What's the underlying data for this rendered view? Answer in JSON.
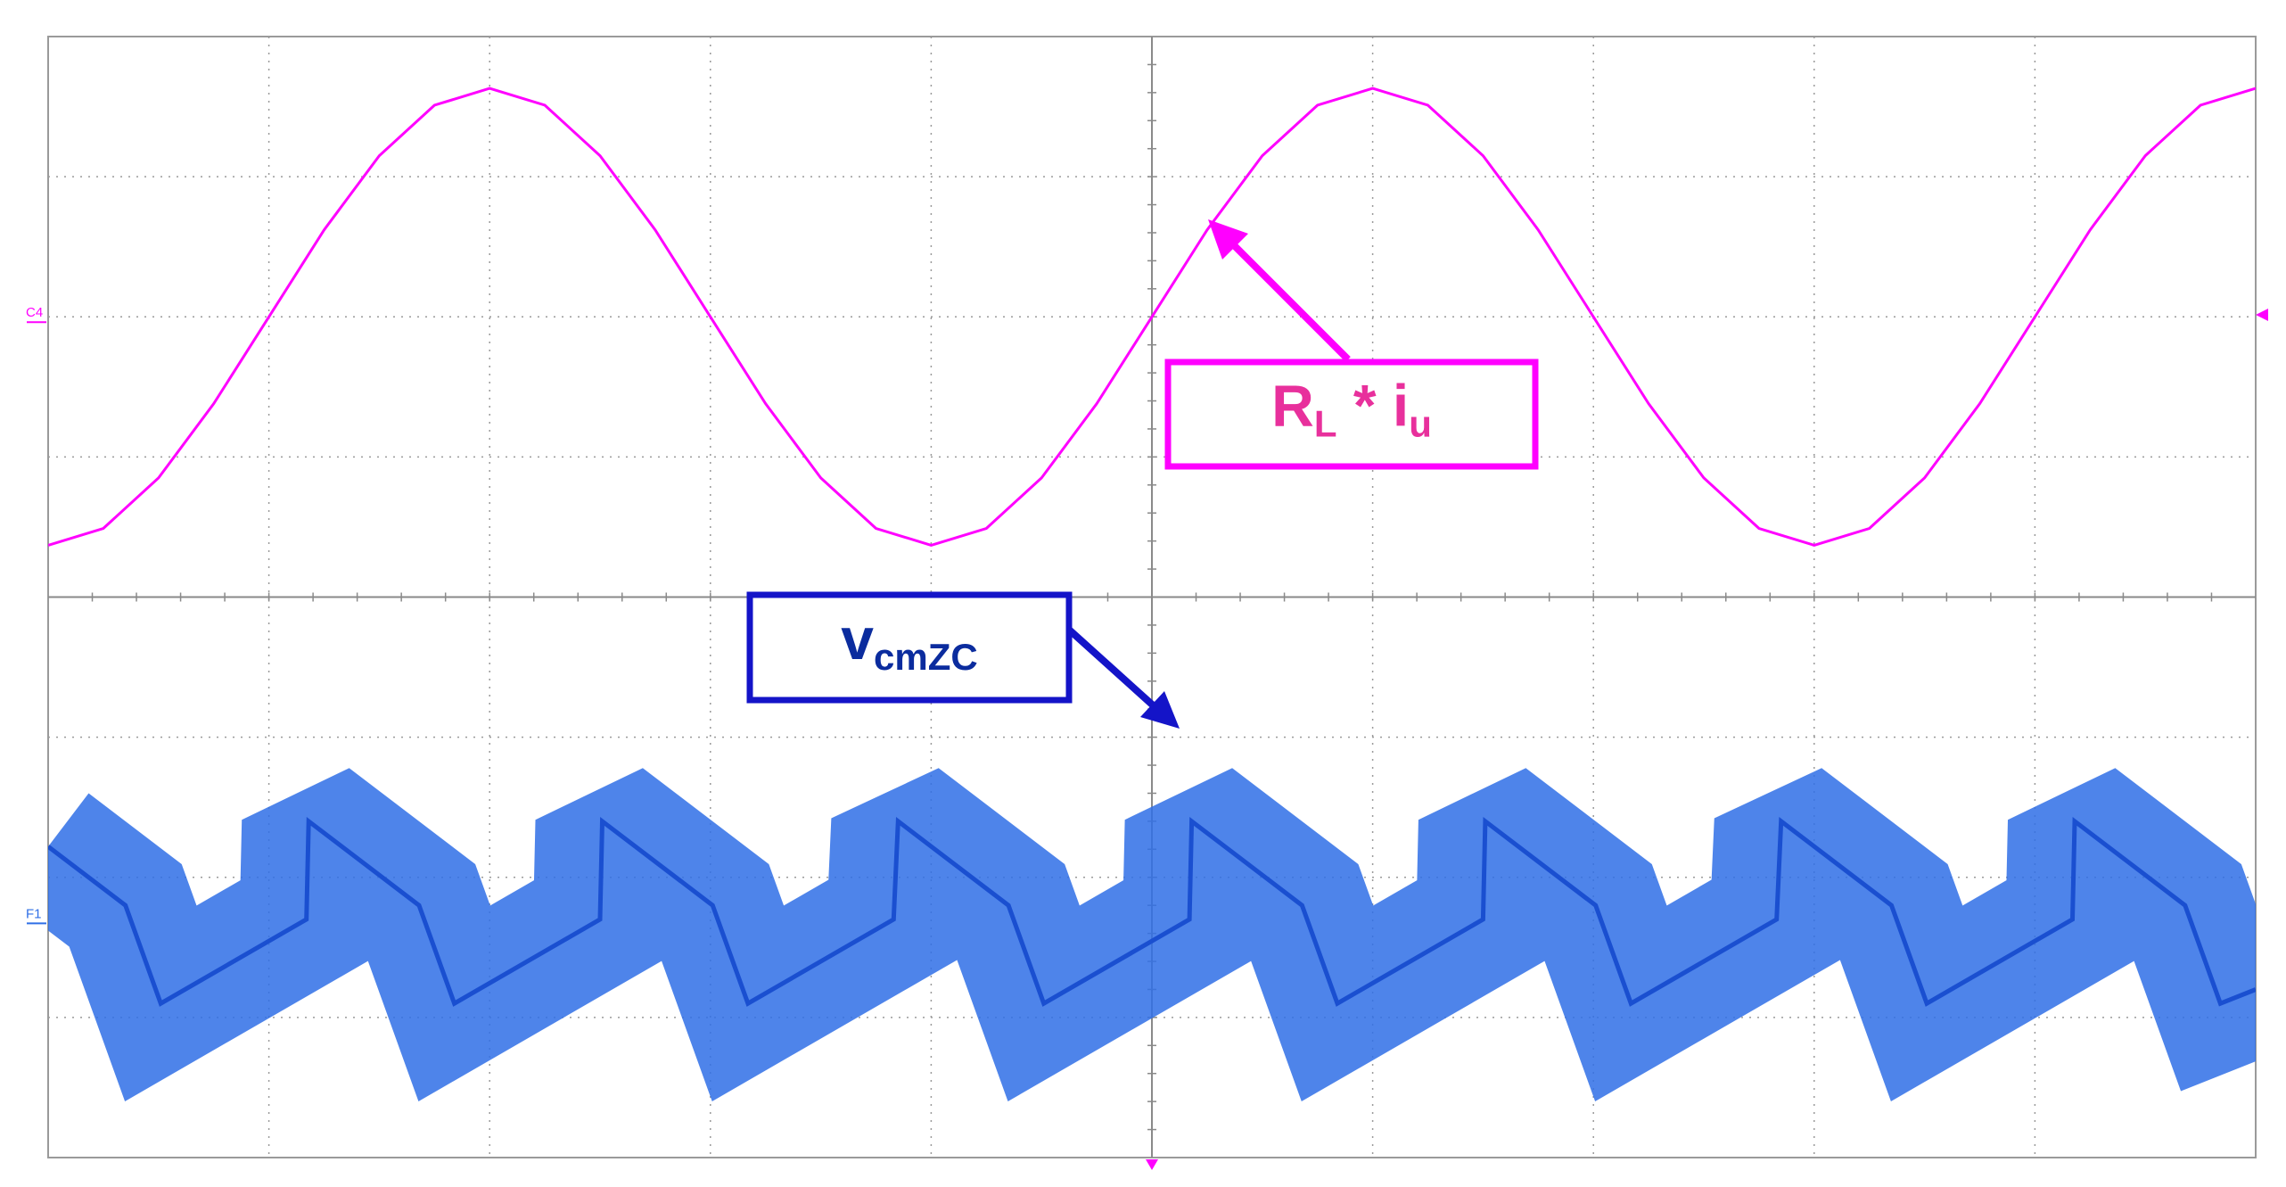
{
  "chart_data": {
    "type": "line",
    "x": [
      0,
      0.25,
      0.5,
      0.75,
      1,
      1.25,
      1.5,
      1.75,
      2,
      2.25,
      2.5,
      2.75,
      3,
      3.25,
      3.5,
      3.75,
      4,
      4.25,
      4.5,
      4.75,
      5,
      5.25,
      5.5,
      5.75,
      6,
      6.25,
      6.5,
      6.75,
      7,
      7.25,
      7.5,
      7.75,
      8,
      8.25,
      8.5,
      8.75,
      9,
      9.25,
      9.5,
      9.75,
      10
    ],
    "series": [
      {
        "name": "C4",
        "color": "#ff00ff",
        "offset": 2,
        "values": [
          0.37,
          0.49,
          0.85,
          1.38,
          2,
          2.62,
          3.15,
          3.51,
          3.63,
          3.51,
          3.15,
          2.62,
          2,
          1.38,
          0.85,
          0.49,
          0.37,
          0.49,
          0.85,
          1.38,
          2,
          2.62,
          3.15,
          3.51,
          3.63,
          3.51,
          3.15,
          2.62,
          2,
          1.38,
          0.85,
          0.49,
          0.37,
          0.49,
          0.85,
          1.38,
          2,
          2.62,
          3.15,
          3.51,
          3.63
        ]
      },
      {
        "name": "F1",
        "color": "#2f6fe6",
        "offset": -2.29,
        "x": [
          0,
          0.35,
          0.51,
          1.17,
          1.18,
          1.68,
          1.84,
          2.5,
          2.51,
          3.01,
          3.17,
          3.83,
          3.85,
          4.35,
          4.51,
          5.17,
          5.18,
          5.68,
          5.84,
          6.5,
          6.51,
          7.01,
          7.17,
          7.83,
          7.85,
          8.35,
          8.51,
          9.17,
          9.18,
          9.68,
          9.84,
          10
        ],
        "values": [
          -1.78,
          -2.2,
          -2.9,
          -2.3,
          -1.6,
          -2.2,
          -2.9,
          -2.3,
          -1.6,
          -2.2,
          -2.9,
          -2.3,
          -1.6,
          -2.2,
          -2.9,
          -2.3,
          -1.6,
          -2.2,
          -2.9,
          -2.3,
          -1.6,
          -2.2,
          -2.9,
          -2.3,
          -1.6,
          -2.2,
          -2.9,
          -2.3,
          -1.6,
          -2.2,
          -2.9,
          -2.8
        ]
      }
    ],
    "xlim": [
      0,
      10
    ],
    "ylim": [
      -4,
      4
    ],
    "xticks": [
      0,
      1,
      2,
      3,
      4,
      5,
      6,
      7,
      8,
      9,
      10
    ],
    "yticks": [
      -4,
      -3,
      -2,
      -1,
      0,
      1,
      2,
      3,
      4
    ],
    "grid": true,
    "annotations": [
      {
        "color": "#e8309c",
        "border": "#ff00ff",
        "parts": [
          {
            "text": "R",
            "sub": false
          },
          {
            "text": "L",
            "sub": true
          },
          {
            "text": " * i",
            "sub": false
          },
          {
            "text": "u",
            "sub": true
          }
        ]
      },
      {
        "color": "#0b2c9e",
        "border": "#1414c8",
        "parts": [
          {
            "text": "v",
            "sub": false
          },
          {
            "text": "cmZC",
            "sub": true
          }
        ]
      }
    ]
  }
}
